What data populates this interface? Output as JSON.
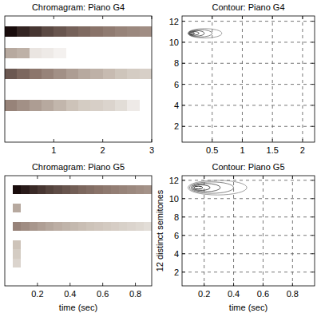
{
  "chart_data": [
    {
      "type": "heatmap",
      "title": "Chromagram: Piano G4",
      "xlim": [
        0,
        3
      ],
      "xticks": [
        1,
        2,
        3
      ],
      "ylim": [
        0.5,
        12.5
      ],
      "tick_labels": "x",
      "clim": [
        0,
        1
      ],
      "bins": [
        0,
        0.25,
        0.5,
        0.75,
        1,
        1.25,
        1.5,
        1.75,
        2,
        2.25,
        2.5,
        2.75,
        3
      ],
      "rows": [
        1,
        2,
        3,
        4,
        5,
        6,
        7,
        8,
        9,
        10,
        11,
        12
      ],
      "cells": [
        [
          0,
          0,
          0,
          0,
          0,
          0,
          0,
          0,
          0,
          0,
          0,
          0
        ],
        [
          0,
          0,
          0,
          0,
          0,
          0,
          0,
          0,
          0,
          0,
          0,
          0
        ],
        [
          0,
          0,
          0,
          0,
          0,
          0,
          0,
          0,
          0,
          0,
          0,
          0
        ],
        [
          0.6,
          0.55,
          0.5,
          0.45,
          0.4,
          0.35,
          0.3,
          0.28,
          0.25,
          0.2,
          0.12,
          0
        ],
        [
          0,
          0,
          0,
          0,
          0,
          0,
          0,
          0,
          0,
          0,
          0,
          0
        ],
        [
          0,
          0,
          0,
          0,
          0,
          0,
          0,
          0,
          0,
          0,
          0,
          0
        ],
        [
          0.75,
          0.7,
          0.65,
          0.6,
          0.55,
          0.5,
          0.45,
          0.42,
          0.38,
          0.34,
          0.3,
          0.28
        ],
        [
          0,
          0,
          0,
          0,
          0,
          0,
          0,
          0,
          0,
          0,
          0,
          0
        ],
        [
          0.45,
          0.42,
          0.15,
          0.12,
          0.08,
          0,
          0,
          0,
          0,
          0,
          0,
          0
        ],
        [
          0,
          0,
          0,
          0,
          0,
          0,
          0,
          0,
          0,
          0,
          0,
          0
        ],
        [
          1,
          0.92,
          0.86,
          0.8,
          0.76,
          0.72,
          0.69,
          0.66,
          0.63,
          0.6,
          0.58,
          0.56
        ],
        [
          0,
          0,
          0,
          0,
          0,
          0,
          0,
          0,
          0,
          0,
          0,
          0
        ]
      ]
    },
    {
      "type": "contour",
      "title": "Contour: Piano G4",
      "xlim": [
        0,
        2.2
      ],
      "xticks": [
        0.5,
        1,
        1.5,
        2
      ],
      "ylim": [
        0.5,
        12.5
      ],
      "yticks": [
        2,
        4,
        6,
        8,
        10,
        12
      ],
      "grid": true,
      "contours": [
        {
          "level": 0.2,
          "cx": 0.38,
          "cy": 10.85,
          "rx": 0.28,
          "ry": 0.45
        },
        {
          "level": 0.4,
          "cx": 0.3,
          "cy": 10.85,
          "rx": 0.2,
          "ry": 0.35
        },
        {
          "level": 0.6,
          "cx": 0.24,
          "cy": 10.85,
          "rx": 0.13,
          "ry": 0.26
        },
        {
          "level": 0.8,
          "cx": 0.2,
          "cy": 10.85,
          "rx": 0.08,
          "ry": 0.17
        },
        {
          "level": 1,
          "cx": 0.17,
          "cy": 10.85,
          "rx": 0.04,
          "ry": 0.08
        }
      ]
    },
    {
      "type": "heatmap",
      "title": "Chromagram: Piano G5",
      "xlabel": "time (sec)",
      "xlim": [
        0,
        0.9
      ],
      "xticks": [
        0.2,
        0.4,
        0.6,
        0.8
      ],
      "ylim": [
        0.5,
        12.5
      ],
      "tick_labels": "x",
      "clim": [
        0,
        1
      ],
      "bins": [
        0,
        0.05,
        0.1,
        0.15,
        0.2,
        0.25,
        0.3,
        0.35,
        0.4,
        0.45,
        0.5,
        0.55,
        0.6,
        0.65,
        0.7,
        0.75,
        0.8,
        0.85,
        0.9
      ],
      "rows": [
        1,
        2,
        3,
        4,
        5,
        6,
        7,
        8,
        9,
        10,
        11,
        12
      ],
      "cells": [
        [
          0,
          0,
          0,
          0,
          0,
          0,
          0,
          0,
          0,
          0,
          0,
          0,
          0,
          0,
          0,
          0,
          0,
          0
        ],
        [
          0,
          0,
          0,
          0,
          0,
          0,
          0,
          0,
          0,
          0,
          0,
          0,
          0,
          0,
          0,
          0,
          0,
          0
        ],
        [
          0,
          0.25,
          0,
          0,
          0,
          0,
          0,
          0,
          0,
          0,
          0,
          0,
          0,
          0,
          0,
          0,
          0,
          0
        ],
        [
          0,
          0.3,
          0,
          0,
          0,
          0,
          0,
          0,
          0,
          0,
          0,
          0,
          0,
          0,
          0,
          0,
          0,
          0
        ],
        [
          0,
          0.35,
          0,
          0,
          0,
          0,
          0,
          0,
          0,
          0,
          0,
          0,
          0,
          0,
          0,
          0,
          0,
          0
        ],
        [
          0,
          0,
          0,
          0,
          0,
          0,
          0,
          0,
          0,
          0,
          0,
          0,
          0,
          0,
          0,
          0,
          0,
          0
        ],
        [
          0,
          0.6,
          0.56,
          0.52,
          0.49,
          0.46,
          0.43,
          0.41,
          0.39,
          0.37,
          0.35,
          0.33,
          0.31,
          0.29,
          0.27,
          0.25,
          0.23,
          0.2
        ],
        [
          0,
          0,
          0,
          0,
          0,
          0,
          0,
          0,
          0,
          0,
          0,
          0,
          0,
          0,
          0,
          0,
          0,
          0
        ],
        [
          0,
          0.45,
          0,
          0,
          0,
          0,
          0,
          0,
          0,
          0,
          0,
          0,
          0,
          0,
          0,
          0,
          0,
          0
        ],
        [
          0,
          0,
          0,
          0,
          0,
          0,
          0,
          0,
          0,
          0,
          0,
          0,
          0,
          0,
          0,
          0,
          0,
          0
        ],
        [
          0,
          1,
          0.95,
          0.9,
          0.86,
          0.82,
          0.79,
          0.76,
          0.73,
          0.7,
          0.68,
          0.66,
          0.64,
          0.62,
          0.6,
          0.58,
          0.56,
          0.54
        ],
        [
          0,
          0,
          0,
          0,
          0,
          0,
          0,
          0,
          0,
          0,
          0,
          0,
          0,
          0,
          0,
          0,
          0,
          0
        ]
      ]
    },
    {
      "type": "contour",
      "title": "Contour: Piano G5",
      "xlabel": "time (sec)",
      "ylabel": "12 distinct semitones",
      "xlim": [
        0.05,
        0.95
      ],
      "xticks": [
        0.2,
        0.4,
        0.6,
        0.8
      ],
      "ylim": [
        0.5,
        12.5
      ],
      "yticks": [
        2,
        4,
        6,
        8,
        10,
        12
      ],
      "grid": true,
      "contours": [
        {
          "level": 0.2,
          "cx": 0.29,
          "cy": 11.2,
          "rx": 0.2,
          "ry": 0.8
        },
        {
          "level": 0.4,
          "cx": 0.25,
          "cy": 11.2,
          "rx": 0.15,
          "ry": 0.62
        },
        {
          "level": 0.6,
          "cx": 0.21,
          "cy": 11.2,
          "rx": 0.1,
          "ry": 0.45
        },
        {
          "level": 0.8,
          "cx": 0.18,
          "cy": 11.2,
          "rx": 0.06,
          "ry": 0.3
        },
        {
          "level": 1,
          "cx": 0.16,
          "cy": 11.2,
          "rx": 0.03,
          "ry": 0.15
        }
      ]
    }
  ]
}
